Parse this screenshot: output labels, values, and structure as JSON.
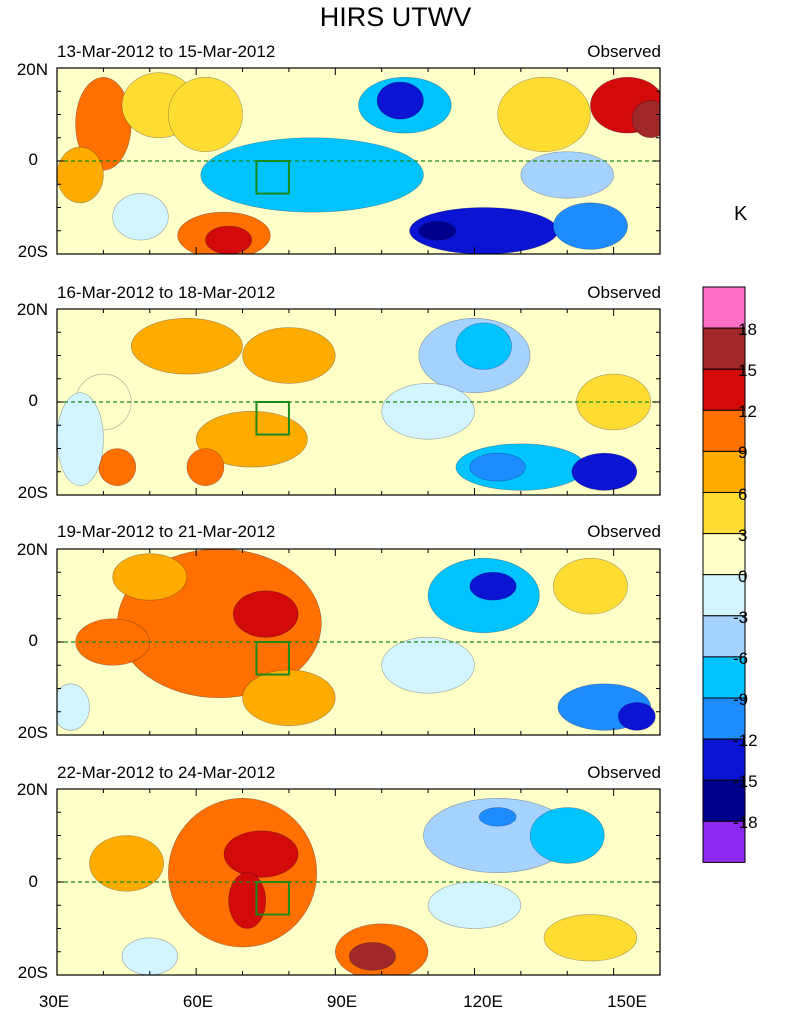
{
  "chart_data": {
    "type": "heatmap",
    "title": "HIRS UTWV",
    "xlabel": "",
    "ylabel": "",
    "xlim": [
      30,
      160
    ],
    "ylim": [
      -20,
      20
    ],
    "x_ticks": [
      "30E",
      "60E",
      "90E",
      "120E",
      "150E"
    ],
    "y_ticks": [
      "20N",
      "0",
      "20S"
    ],
    "colorbar": {
      "unit": "K",
      "labels": [
        "18",
        "15",
        "12",
        "9",
        "6",
        "3",
        "0",
        "-3",
        "-6",
        "-9",
        "-12",
        "-15",
        "-18"
      ],
      "colors": [
        "#ff6ec7",
        "#a02828",
        "#d20a0a",
        "#ff7000",
        "#ffab00",
        "#ffdc32",
        "#ffffc8",
        "#d2f5ff",
        "#a5d2ff",
        "#00c3ff",
        "#1e8cff",
        "#0a14d2",
        "#00008c",
        "#8c28f0"
      ]
    },
    "panels": [
      {
        "date_range": "13-Mar-2012 to 15-Mar-2012",
        "tag": "Observed",
        "blobs": [
          {
            "lon": 40,
            "lat": 8,
            "rx": 6,
            "ry": 10,
            "v": 9
          },
          {
            "lon": 35,
            "lat": -3,
            "rx": 5,
            "ry": 6,
            "v": 6
          },
          {
            "lon": 48,
            "lat": -12,
            "rx": 6,
            "ry": 5,
            "v": -3
          },
          {
            "lon": 52,
            "lat": 12,
            "rx": 8,
            "ry": 7,
            "v": 3
          },
          {
            "lon": 66,
            "lat": -16,
            "rx": 10,
            "ry": 5,
            "v": 9
          },
          {
            "lon": 67,
            "lat": -17,
            "rx": 5,
            "ry": 3,
            "v": 12
          },
          {
            "lon": 62,
            "lat": 10,
            "rx": 8,
            "ry": 8,
            "v": 3
          },
          {
            "lon": 85,
            "lat": -3,
            "rx": 24,
            "ry": 8,
            "v": -9
          },
          {
            "lon": 105,
            "lat": 12,
            "rx": 10,
            "ry": 6,
            "v": -9
          },
          {
            "lon": 104,
            "lat": 13,
            "rx": 5,
            "ry": 4,
            "v": -15
          },
          {
            "lon": 122,
            "lat": -15,
            "rx": 16,
            "ry": 5,
            "v": -15
          },
          {
            "lon": 112,
            "lat": -15,
            "rx": 4,
            "ry": 2,
            "v": -18
          },
          {
            "lon": 145,
            "lat": -14,
            "rx": 8,
            "ry": 5,
            "v": -12
          },
          {
            "lon": 135,
            "lat": 10,
            "rx": 10,
            "ry": 8,
            "v": 3
          },
          {
            "lon": 153,
            "lat": 12,
            "rx": 8,
            "ry": 6,
            "v": 12
          },
          {
            "lon": 158,
            "lat": 9,
            "rx": 4,
            "ry": 4,
            "v": 15
          },
          {
            "lon": 140,
            "lat": -3,
            "rx": 10,
            "ry": 5,
            "v": -6
          }
        ]
      },
      {
        "date_range": "16-Mar-2012 to 18-Mar-2012",
        "tag": "Observed",
        "blobs": [
          {
            "lon": 58,
            "lat": 12,
            "rx": 12,
            "ry": 6,
            "v": 6
          },
          {
            "lon": 80,
            "lat": 10,
            "rx": 10,
            "ry": 6,
            "v": 6
          },
          {
            "lon": 72,
            "lat": -8,
            "rx": 12,
            "ry": 6,
            "v": 6
          },
          {
            "lon": 43,
            "lat": -14,
            "rx": 4,
            "ry": 4,
            "v": 9
          },
          {
            "lon": 62,
            "lat": -14,
            "rx": 4,
            "ry": 4,
            "v": 9
          },
          {
            "lon": 40,
            "lat": 0,
            "rx": 6,
            "ry": 6,
            "v": 0
          },
          {
            "lon": 35,
            "lat": -8,
            "rx": 5,
            "ry": 10,
            "v": -3
          },
          {
            "lon": 120,
            "lat": 10,
            "rx": 12,
            "ry": 8,
            "v": -6
          },
          {
            "lon": 122,
            "lat": 12,
            "rx": 6,
            "ry": 5,
            "v": -9
          },
          {
            "lon": 130,
            "lat": -14,
            "rx": 14,
            "ry": 5,
            "v": -9
          },
          {
            "lon": 125,
            "lat": -14,
            "rx": 6,
            "ry": 3,
            "v": -12
          },
          {
            "lon": 148,
            "lat": -15,
            "rx": 7,
            "ry": 4,
            "v": -15
          },
          {
            "lon": 110,
            "lat": -2,
            "rx": 10,
            "ry": 6,
            "v": -3
          },
          {
            "lon": 150,
            "lat": 0,
            "rx": 8,
            "ry": 6,
            "v": 3
          }
        ]
      },
      {
        "date_range": "19-Mar-2012 to 21-Mar-2012",
        "tag": "Observed",
        "blobs": [
          {
            "lon": 65,
            "lat": 4,
            "rx": 22,
            "ry": 16,
            "v": 9
          },
          {
            "lon": 75,
            "lat": 6,
            "rx": 7,
            "ry": 5,
            "v": 12
          },
          {
            "lon": 42,
            "lat": 0,
            "rx": 8,
            "ry": 5,
            "v": 9
          },
          {
            "lon": 80,
            "lat": -12,
            "rx": 10,
            "ry": 6,
            "v": 6
          },
          {
            "lon": 50,
            "lat": 14,
            "rx": 8,
            "ry": 5,
            "v": 6
          },
          {
            "lon": 122,
            "lat": 10,
            "rx": 12,
            "ry": 8,
            "v": -9
          },
          {
            "lon": 124,
            "lat": 12,
            "rx": 5,
            "ry": 3,
            "v": -15
          },
          {
            "lon": 148,
            "lat": -14,
            "rx": 10,
            "ry": 5,
            "v": -12
          },
          {
            "lon": 155,
            "lat": -16,
            "rx": 4,
            "ry": 3,
            "v": -15
          },
          {
            "lon": 110,
            "lat": -5,
            "rx": 10,
            "ry": 6,
            "v": -3
          },
          {
            "lon": 145,
            "lat": 12,
            "rx": 8,
            "ry": 6,
            "v": 3
          },
          {
            "lon": 33,
            "lat": -14,
            "rx": 4,
            "ry": 5,
            "v": -3
          }
        ]
      },
      {
        "date_range": "22-Mar-2012 to 24-Mar-2012",
        "tag": "Observed",
        "blobs": [
          {
            "lon": 70,
            "lat": 2,
            "rx": 16,
            "ry": 16,
            "v": 9
          },
          {
            "lon": 74,
            "lat": 6,
            "rx": 8,
            "ry": 5,
            "v": 12
          },
          {
            "lon": 71,
            "lat": -4,
            "rx": 4,
            "ry": 6,
            "v": 12
          },
          {
            "lon": 100,
            "lat": -15,
            "rx": 10,
            "ry": 6,
            "v": 9
          },
          {
            "lon": 98,
            "lat": -16,
            "rx": 5,
            "ry": 3,
            "v": 15
          },
          {
            "lon": 45,
            "lat": 4,
            "rx": 8,
            "ry": 6,
            "v": 6
          },
          {
            "lon": 125,
            "lat": 10,
            "rx": 16,
            "ry": 8,
            "v": -6
          },
          {
            "lon": 125,
            "lat": 14,
            "rx": 4,
            "ry": 2,
            "v": -12
          },
          {
            "lon": 140,
            "lat": 10,
            "rx": 8,
            "ry": 6,
            "v": -9
          },
          {
            "lon": 120,
            "lat": -5,
            "rx": 10,
            "ry": 5,
            "v": -3
          },
          {
            "lon": 50,
            "lat": -16,
            "rx": 6,
            "ry": 4,
            "v": -3
          },
          {
            "lon": 145,
            "lat": -12,
            "rx": 10,
            "ry": 5,
            "v": 3
          }
        ]
      }
    ],
    "box_region": {
      "lon": [
        73,
        80
      ],
      "lat": [
        -7,
        0
      ]
    }
  }
}
